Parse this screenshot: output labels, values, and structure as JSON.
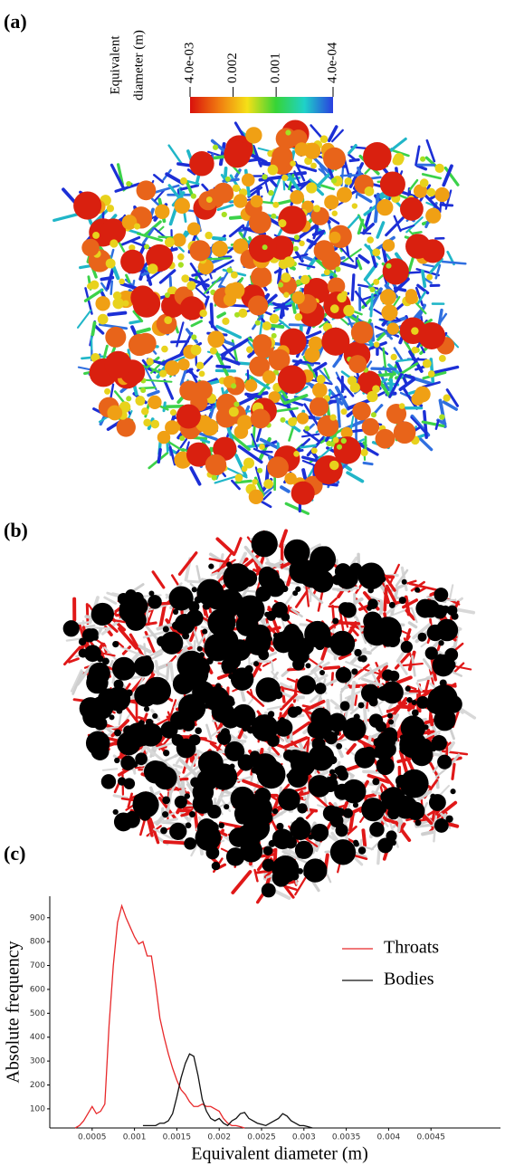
{
  "panel_labels": [
    "(a)",
    "(b)",
    "(c)"
  ],
  "colorbar": {
    "title_lines": [
      "Equivalent",
      "diameter (m)"
    ],
    "log": true,
    "reversed": true,
    "clim": [
      0.0004,
      0.004
    ],
    "colors": [
      "#d9100c",
      "#f07a10",
      "#f5e017",
      "#36d436",
      "#1fd2c8",
      "#2a3ee0"
    ],
    "ticks": [
      {
        "value": 0.004,
        "label": "4.0e-03"
      },
      0.002,
      0.001,
      {
        "value": 0.0004,
        "label": "4.0e-04"
      }
    ]
  },
  "chart_data": {
    "type": "line",
    "x_label": "Equivalent diameter (m)",
    "y_label": "Absolute frequency",
    "x": [
      0.0003,
      0.00035,
      0.0004,
      0.00045,
      0.0005,
      0.00055,
      0.0006,
      0.00065,
      0.0007,
      0.00075,
      0.0008,
      0.00085,
      0.0009,
      0.00095,
      0.001,
      0.00105,
      0.0011,
      0.00115,
      0.0012,
      0.00125,
      0.0013,
      0.00135,
      0.0014,
      0.00145,
      0.0015,
      0.00155,
      0.0016,
      0.00165,
      0.0017,
      0.00175,
      0.0018,
      0.00185,
      0.0019,
      0.00195,
      0.002,
      0.00205,
      0.0021,
      0.00215,
      0.0022,
      0.00225,
      0.0023,
      0.00235,
      0.0024,
      0.00245,
      0.0025,
      0.00255,
      0.0026,
      0.00265,
      0.0027,
      0.00275,
      0.0028,
      0.00285,
      0.0029,
      0.00295,
      0.003,
      0.00305,
      0.0031
    ],
    "series": [
      {
        "name": "Throats",
        "color": "#e8292b",
        "values": [
          20,
          30,
          50,
          80,
          110,
          80,
          90,
          120,
          450,
          700,
          880,
          950,
          900,
          860,
          820,
          790,
          800,
          740,
          740,
          620,
          480,
          400,
          330,
          270,
          220,
          180,
          160,
          130,
          110,
          110,
          120,
          110,
          110,
          100,
          90,
          60,
          40,
          30,
          30,
          25,
          20,
          null,
          null,
          null,
          null,
          null,
          null,
          null,
          null,
          null,
          null,
          null,
          null,
          null,
          null,
          null,
          null
        ]
      },
      {
        "name": "Bodies",
        "color": "#111111",
        "values": [
          null,
          null,
          null,
          null,
          null,
          null,
          null,
          null,
          null,
          null,
          null,
          null,
          null,
          null,
          null,
          null,
          30,
          30,
          30,
          30,
          40,
          40,
          50,
          80,
          150,
          230,
          290,
          330,
          320,
          240,
          140,
          90,
          60,
          50,
          60,
          40,
          30,
          50,
          60,
          80,
          85,
          60,
          50,
          40,
          35,
          30,
          40,
          50,
          60,
          80,
          70,
          50,
          40,
          30,
          30,
          25,
          20
        ]
      }
    ],
    "xlim": [
      0,
      0.005
    ],
    "ylim": [
      20,
      990
    ],
    "xticks": [
      0.0005,
      0.001,
      0.0015,
      0.002,
      0.0025,
      0.003,
      0.0035,
      0.004,
      0.0045
    ],
    "yticks": [
      100,
      200,
      300,
      400,
      500,
      600,
      700,
      800,
      900
    ],
    "legend": "center right"
  }
}
